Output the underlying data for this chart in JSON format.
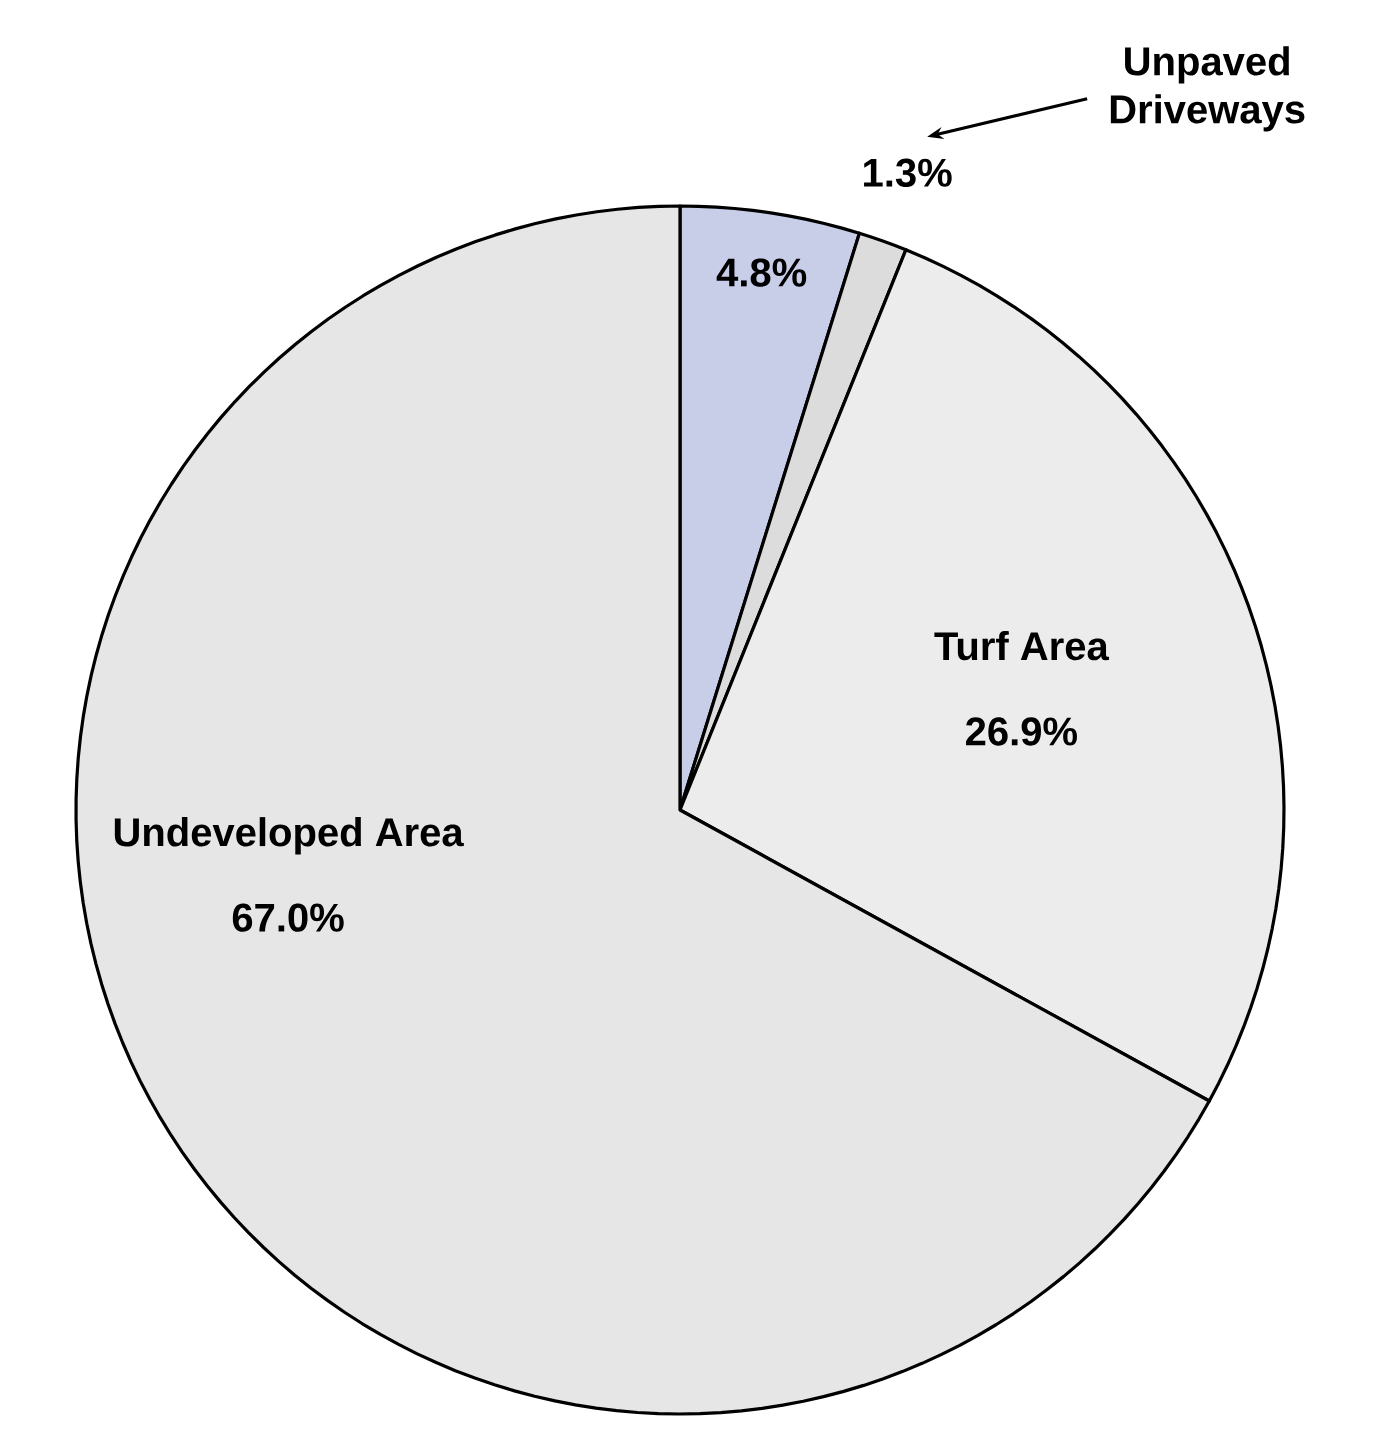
{
  "chart_data": {
    "type": "pie",
    "categories": [
      null,
      "Unpaved Driveways",
      "Turf Area",
      "Undeveloped Area"
    ],
    "values": [
      4.8,
      1.3,
      26.9,
      67.0
    ],
    "colors": [
      "#c8cde8",
      "#dcdcdc",
      "#ececec",
      "#e6e6e6"
    ],
    "value_labels": [
      "4.8%",
      "1.3%",
      "26.9%",
      "67.0%"
    ]
  }
}
